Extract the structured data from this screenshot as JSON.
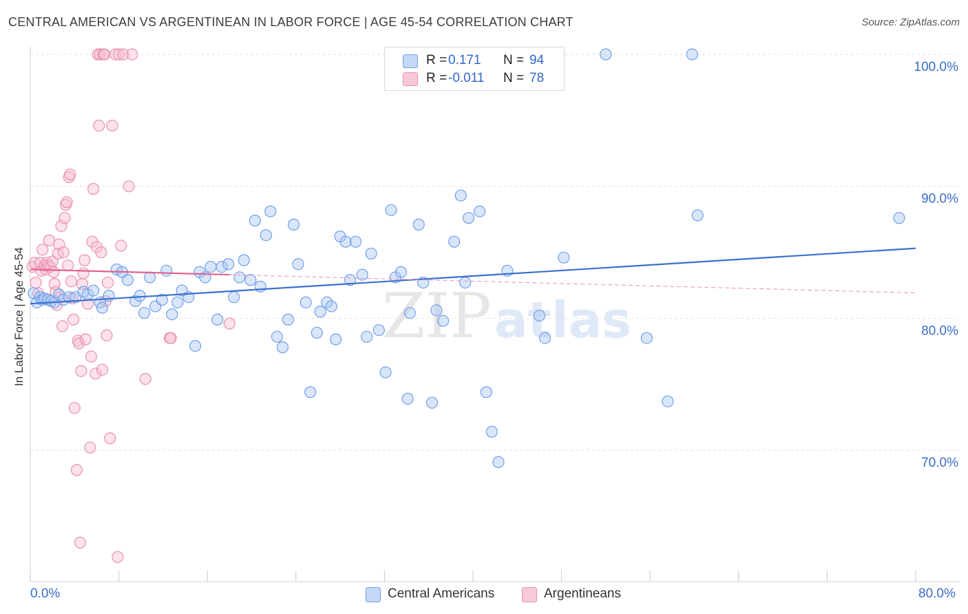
{
  "title": "CENTRAL AMERICAN VS ARGENTINEAN IN LABOR FORCE | AGE 45-54 CORRELATION CHART",
  "source": "Source: ZipAtlas.com",
  "watermark": "ZIPatlas",
  "legend": {
    "r_label": "R =",
    "n_label": "N =",
    "series": [
      {
        "name": "Central Americans",
        "r": "0.171",
        "n": "94",
        "color": "#6f9ee8",
        "fill": "#c5d8f6"
      },
      {
        "name": "Argentineans",
        "r": "-0.011",
        "n": "78",
        "color": "#e891ab",
        "fill": "#f8c9d7"
      }
    ]
  },
  "chart_data": {
    "type": "scatter",
    "title": "CENTRAL AMERICAN VS ARGENTINEAN IN LABOR FORCE | AGE 45-54 CORRELATION CHART",
    "xlabel": "",
    "ylabel": "In Labor Force | Age 45-54",
    "xlim": [
      0,
      80
    ],
    "ylim": [
      60,
      100
    ],
    "x_tick_labels": [
      "0.0%",
      "80.0%"
    ],
    "y_ticks": [
      {
        "value": 100,
        "label": "100.0%"
      },
      {
        "value": 90,
        "label": "90.0%"
      },
      {
        "value": 80,
        "label": "80.0%"
      },
      {
        "value": 70,
        "label": "70.0%"
      }
    ],
    "series": [
      {
        "name": "Central Americans",
        "color": "#3a70d0",
        "trend": {
          "x": [
            0,
            80
          ],
          "y": [
            81.1,
            85.3
          ]
        },
        "points": [
          [
            0.3,
            81.9
          ],
          [
            0.6,
            81.2
          ],
          [
            0.9,
            81.6
          ],
          [
            1.1,
            81.4
          ],
          [
            1.3,
            81.5
          ],
          [
            1.6,
            81.4
          ],
          [
            1.9,
            81.3
          ],
          [
            2.2,
            81.2
          ],
          [
            2.6,
            81.8
          ],
          [
            3.0,
            81.4
          ],
          [
            3.5,
            81.6
          ],
          [
            4.1,
            81.6
          ],
          [
            4.8,
            82.0
          ],
          [
            5.2,
            81.8
          ],
          [
            5.7,
            82.1
          ],
          [
            6.3,
            81.2
          ],
          [
            6.5,
            80.8
          ],
          [
            7.1,
            81.7
          ],
          [
            7.8,
            83.7
          ],
          [
            8.3,
            83.5
          ],
          [
            8.8,
            82.9
          ],
          [
            9.5,
            81.3
          ],
          [
            9.9,
            81.7
          ],
          [
            10.3,
            80.4
          ],
          [
            10.8,
            83.1
          ],
          [
            11.3,
            80.9
          ],
          [
            11.9,
            81.4
          ],
          [
            12.3,
            83.6
          ],
          [
            12.8,
            80.3
          ],
          [
            13.3,
            81.2
          ],
          [
            13.7,
            82.1
          ],
          [
            14.3,
            81.6
          ],
          [
            14.9,
            77.9
          ],
          [
            15.3,
            83.5
          ],
          [
            15.8,
            83.1
          ],
          [
            16.3,
            83.9
          ],
          [
            16.9,
            79.9
          ],
          [
            17.3,
            83.9
          ],
          [
            17.9,
            84.1
          ],
          [
            18.4,
            81.6
          ],
          [
            18.9,
            83.1
          ],
          [
            19.3,
            84.4
          ],
          [
            19.9,
            82.9
          ],
          [
            20.3,
            87.4
          ],
          [
            20.8,
            82.4
          ],
          [
            21.3,
            86.3
          ],
          [
            21.7,
            88.1
          ],
          [
            22.3,
            78.6
          ],
          [
            22.8,
            77.8
          ],
          [
            23.3,
            79.9
          ],
          [
            23.8,
            87.1
          ],
          [
            24.2,
            84.1
          ],
          [
            24.9,
            81.2
          ],
          [
            25.3,
            74.4
          ],
          [
            25.9,
            78.9
          ],
          [
            26.2,
            80.5
          ],
          [
            26.8,
            81.2
          ],
          [
            27.2,
            80.9
          ],
          [
            27.6,
            78.4
          ],
          [
            28.0,
            86.2
          ],
          [
            28.5,
            85.8
          ],
          [
            28.9,
            82.9
          ],
          [
            29.4,
            85.8
          ],
          [
            30.0,
            83.3
          ],
          [
            30.4,
            78.6
          ],
          [
            30.8,
            84.9
          ],
          [
            31.5,
            79.1
          ],
          [
            32.1,
            75.9
          ],
          [
            32.6,
            88.2
          ],
          [
            33.0,
            83.1
          ],
          [
            33.5,
            83.5
          ],
          [
            34.1,
            73.9
          ],
          [
            34.3,
            80.4
          ],
          [
            35.1,
            87.1
          ],
          [
            35.5,
            82.7
          ],
          [
            36.3,
            73.6
          ],
          [
            36.7,
            80.6
          ],
          [
            37.3,
            79.8
          ],
          [
            38.3,
            85.8
          ],
          [
            38.9,
            89.3
          ],
          [
            39.3,
            82.7
          ],
          [
            39.6,
            87.6
          ],
          [
            40.6,
            88.1
          ],
          [
            41.2,
            74.4
          ],
          [
            41.7,
            71.4
          ],
          [
            42.3,
            69.1
          ],
          [
            43.1,
            83.6
          ],
          [
            46.0,
            80.2
          ],
          [
            46.5,
            78.5
          ],
          [
            48.2,
            84.6
          ],
          [
            52.0,
            100.0
          ],
          [
            55.7,
            78.5
          ],
          [
            57.6,
            73.7
          ],
          [
            59.8,
            100.0
          ],
          [
            60.3,
            87.8
          ],
          [
            78.5,
            87.6
          ]
        ]
      },
      {
        "name": "Argentineans",
        "color": "#e0628f",
        "trend": {
          "x": [
            0,
            18
          ],
          "y": [
            83.7,
            83.3
          ]
        },
        "points": [
          [
            0.2,
            83.9
          ],
          [
            0.4,
            84.2
          ],
          [
            0.5,
            82.7
          ],
          [
            0.7,
            81.9
          ],
          [
            0.9,
            84.2
          ],
          [
            1.0,
            83.6
          ],
          [
            1.1,
            85.2
          ],
          [
            1.3,
            84.0
          ],
          [
            1.4,
            83.7
          ],
          [
            1.5,
            84.2
          ],
          [
            1.6,
            84.0
          ],
          [
            1.7,
            85.9
          ],
          [
            1.8,
            83.9
          ],
          [
            2.0,
            84.3
          ],
          [
            2.1,
            83.5
          ],
          [
            2.2,
            82.6
          ],
          [
            2.3,
            82.0
          ],
          [
            2.4,
            81.0
          ],
          [
            2.5,
            84.9
          ],
          [
            2.6,
            85.6
          ],
          [
            2.7,
            81.6
          ],
          [
            2.8,
            87.0
          ],
          [
            2.9,
            79.4
          ],
          [
            3.0,
            85.0
          ],
          [
            3.1,
            87.6
          ],
          [
            3.2,
            88.6
          ],
          [
            3.3,
            88.8
          ],
          [
            3.4,
            84.0
          ],
          [
            3.5,
            90.7
          ],
          [
            3.6,
            90.9
          ],
          [
            3.7,
            82.8
          ],
          [
            3.8,
            81.5
          ],
          [
            3.9,
            79.9
          ],
          [
            4.0,
            73.2
          ],
          [
            4.2,
            68.5
          ],
          [
            4.3,
            78.3
          ],
          [
            4.4,
            78.1
          ],
          [
            4.5,
            63.0
          ],
          [
            4.6,
            76.0
          ],
          [
            4.7,
            82.6
          ],
          [
            4.8,
            83.4
          ],
          [
            4.9,
            84.4
          ],
          [
            5.0,
            78.4
          ],
          [
            5.2,
            81.1
          ],
          [
            5.4,
            70.2
          ],
          [
            5.5,
            77.1
          ],
          [
            5.6,
            85.8
          ],
          [
            5.7,
            89.8
          ],
          [
            5.9,
            75.8
          ],
          [
            6.0,
            85.4
          ],
          [
            6.1,
            100.0
          ],
          [
            6.2,
            94.6
          ],
          [
            6.3,
            100.0
          ],
          [
            6.4,
            85.0
          ],
          [
            6.5,
            76.1
          ],
          [
            6.6,
            100.0
          ],
          [
            6.7,
            100.0
          ],
          [
            6.8,
            81.3
          ],
          [
            6.9,
            78.7
          ],
          [
            7.0,
            82.7
          ],
          [
            7.2,
            70.9
          ],
          [
            7.4,
            94.6
          ],
          [
            7.7,
            100.0
          ],
          [
            7.9,
            61.9
          ],
          [
            8.0,
            100.0
          ],
          [
            8.2,
            85.5
          ],
          [
            8.4,
            100.0
          ],
          [
            8.9,
            90.0
          ],
          [
            9.2,
            100.0
          ],
          [
            10.4,
            75.4
          ],
          [
            12.6,
            78.5
          ],
          [
            12.7,
            78.5
          ],
          [
            18.0,
            79.6
          ]
        ]
      }
    ]
  }
}
